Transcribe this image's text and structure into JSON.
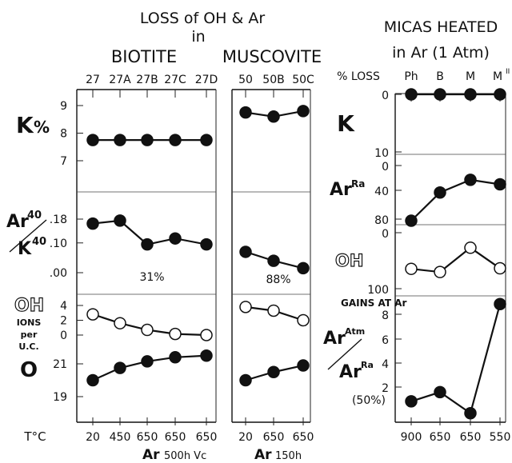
{
  "titles": {
    "main_line1": "LOSS of OH & Ar",
    "main_line2": "in",
    "biotite": "BIOTITE",
    "muscovite": "MUSCOVITE",
    "right_line1": "MICAS HEATED",
    "right_line2": "in Ar (1 Atm)"
  },
  "left_labels": {
    "k": "K",
    "k_pct": "%",
    "ar": "Ar",
    "ar_sup": "40",
    "k40": "K",
    "k40_sup": "40",
    "oh": "OH",
    "ions": "IONS",
    "per": "per",
    "uc": "U.C.",
    "o": "O",
    "t_c": "T°C"
  },
  "right_labels": {
    "k": "K",
    "pct_loss": "% LOSS",
    "ar": "Ar",
    "ar_sup": "Ra",
    "oh": "OH",
    "gains": "GAINS AT Ar",
    "ar_atm_num": "Ar",
    "ar_atm_sup": "Atm",
    "ar_ra_den": "Ar",
    "ar_ra_sup": "Ra",
    "fifty": "(50%)"
  },
  "footer": {
    "biotite_ar": "Ar",
    "biotite_cond": "500h Vc",
    "muscovite_ar": "Ar",
    "muscovite_cond": "150h"
  },
  "chart_data": [
    {
      "name": "biotite",
      "type": "line",
      "categories": [
        "27",
        "27A",
        "27B",
        "27C",
        "27D"
      ],
      "temperatures": [
        "20",
        "450",
        "650",
        "650",
        "650"
      ],
      "panels": [
        {
          "key": "k",
          "ylim": [
            6.3,
            9.6
          ],
          "ticks": [
            "9",
            "8",
            "7"
          ],
          "series": [
            {
              "values": [
                7.75,
                7.75,
                7.75,
                7.75,
                7.75
              ],
              "marker": "filled"
            }
          ]
        },
        {
          "key": "ar_k",
          "ylim": [
            -0.05,
            0.26
          ],
          "ticks": [
            ".18",
            ".10",
            ".00"
          ],
          "series": [
            {
              "values": [
                0.165,
                0.175,
                0.095,
                0.115,
                0.095
              ],
              "marker": "filled"
            }
          ],
          "annotation": "31%"
        },
        {
          "key": "oh",
          "ylim": [
            -1.8,
            4.8
          ],
          "ticks": [
            "4",
            "2",
            "0"
          ],
          "series": [
            {
              "values": [
                2.8,
                1.6,
                0.7,
                0.15,
                0.0
              ],
              "marker": "open"
            }
          ]
        },
        {
          "key": "o",
          "ylim": [
            18.5,
            22.5
          ],
          "ticks": [
            "21",
            "19"
          ],
          "series": [
            {
              "values": [
                20.0,
                20.75,
                21.15,
                21.4,
                21.5
              ],
              "marker": "filled"
            }
          ]
        }
      ]
    },
    {
      "name": "muscovite",
      "type": "line",
      "categories": [
        "50",
        "50B",
        "50C"
      ],
      "temperatures": [
        "20",
        "650",
        "650"
      ],
      "panels": [
        {
          "key": "k",
          "series": [
            {
              "values": [
                8.75,
                8.6,
                8.8
              ],
              "marker": "filled"
            }
          ]
        },
        {
          "key": "ar_k",
          "series": [
            {
              "values": [
                0.07,
                0.04,
                0.015
              ],
              "marker": "filled"
            }
          ],
          "annotation": "88%"
        },
        {
          "key": "oh",
          "series": [
            {
              "values": [
                3.8,
                3.3,
                2.0
              ],
              "marker": "open"
            }
          ]
        },
        {
          "key": "o",
          "series": [
            {
              "values": [
                20.0,
                20.5,
                20.9
              ],
              "marker": "filled"
            }
          ]
        }
      ]
    },
    {
      "name": "micas_heated",
      "type": "line",
      "categories": [
        "Ph",
        "B",
        "M",
        "M II"
      ],
      "temperatures": [
        "900",
        "650",
        "650",
        "550"
      ],
      "panels": [
        {
          "key": "k_loss",
          "ylim": [
            0,
            10
          ],
          "ticks": [
            "0",
            "10"
          ],
          "series": [
            {
              "values": [
                0.0,
                0.0,
                0.0,
                0.0
              ],
              "marker": "filled"
            }
          ]
        },
        {
          "key": "ar_loss",
          "ylim": [
            0,
            100
          ],
          "ticks": [
            "0",
            "40",
            "80"
          ],
          "series": [
            {
              "values": [
                85,
                47,
                30,
                36
              ],
              "marker": "filled"
            }
          ]
        },
        {
          "key": "oh_loss",
          "ylim": [
            0,
            100
          ],
          "ticks": [
            "0",
            "100"
          ],
          "series": [
            {
              "values": [
                70,
                76,
                30,
                69
              ],
              "marker": "open"
            }
          ]
        },
        {
          "key": "ar_gain",
          "ylim": [
            0,
            9
          ],
          "ticks": [
            "8",
            "6",
            "4",
            "2"
          ],
          "series": [
            {
              "values": [
                1.1,
                1.8,
                0.2,
                8.5
              ],
              "marker": "filled"
            }
          ]
        }
      ]
    }
  ]
}
